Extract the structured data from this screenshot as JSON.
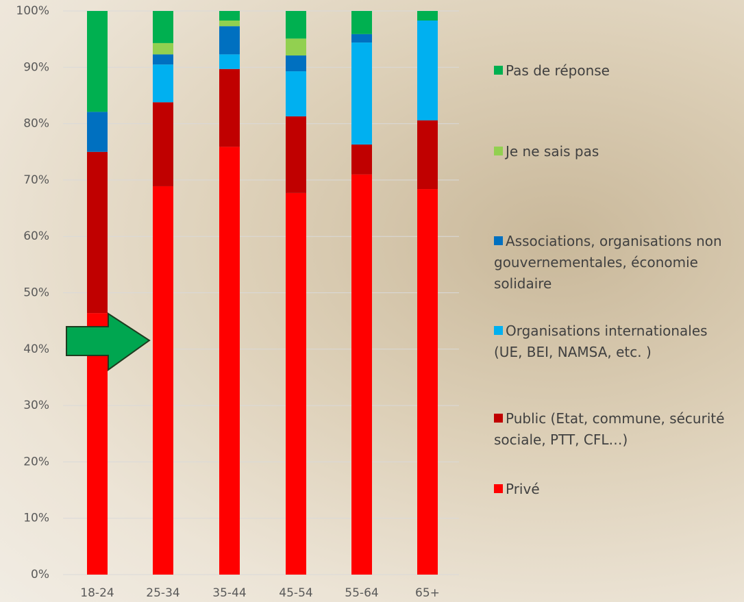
{
  "chart_data": {
    "type": "stacked-bar",
    "categories": [
      "18-24",
      "25-34",
      "35-44",
      "45-54",
      "55-64",
      "65+"
    ],
    "series": [
      {
        "name": "Privé",
        "color": "#ff0000",
        "values": [
          46.4,
          68.9,
          75.9,
          67.7,
          71.0,
          68.4
        ]
      },
      {
        "name": "Public (Etat, commune, sécurité sociale, PTT, CFL…)",
        "color": "#c00000",
        "values": [
          28.6,
          14.9,
          13.8,
          13.6,
          5.3,
          12.2
        ]
      },
      {
        "name": "Organisations internationales (UE, BEI, NAMSA, etc. )",
        "color": "#00b0f0",
        "values": [
          0,
          6.7,
          2.6,
          8.0,
          18.1,
          17.7
        ]
      },
      {
        "name": "Associations, organisations non gouvernementales, économie solidaire",
        "color": "#0070c0",
        "values": [
          7.1,
          1.8,
          5.0,
          2.8,
          1.5,
          0
        ]
      },
      {
        "name": "Je ne sais pas",
        "color": "#92d050",
        "values": [
          0,
          2.0,
          1.0,
          3.0,
          0,
          0
        ]
      },
      {
        "name": "Pas de réponse",
        "color": "#00b050",
        "values": [
          17.9,
          5.7,
          1.7,
          4.9,
          4.1,
          1.7
        ]
      }
    ],
    "ylim": [
      0,
      100
    ],
    "yticks": [
      {
        "value": 0,
        "label": "0%"
      },
      {
        "value": 10,
        "label": "10%"
      },
      {
        "value": 20,
        "label": "20%"
      },
      {
        "value": 30,
        "label": "30%"
      },
      {
        "value": 40,
        "label": "40%"
      },
      {
        "value": 50,
        "label": "50%"
      },
      {
        "value": 60,
        "label": "60%"
      },
      {
        "value": 70,
        "label": "70%"
      },
      {
        "value": 80,
        "label": "80%"
      },
      {
        "value": 90,
        "label": "90%"
      },
      {
        "value": 100,
        "label": "100%"
      }
    ],
    "grid": true,
    "legend": "right"
  }
}
